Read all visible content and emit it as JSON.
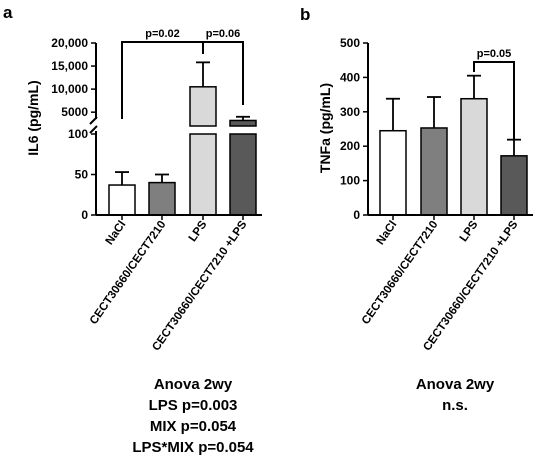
{
  "chart_data": [
    {
      "panel": "a",
      "type": "bar",
      "ylabel": "IL6 (pg/mL)",
      "y_axis": {
        "broken": true,
        "lower_range": [
          0,
          100
        ],
        "lower_ticks": [
          0,
          50,
          100
        ],
        "upper_range": [
          2000,
          20000
        ],
        "upper_ticks": [
          5000,
          10000,
          15000,
          20000
        ],
        "tick_labels": [
          "0",
          "50",
          "100",
          "5000",
          "10,000",
          "15,000",
          "20,000"
        ]
      },
      "categories": [
        "NaCl",
        "CECT30660/CECT7210",
        "LPS",
        "CECT30660/CECT7210 +LPS"
      ],
      "values": [
        37,
        40,
        10500,
        3200
      ],
      "error": [
        16,
        10,
        5300,
        800
      ],
      "colors": [
        "#ffffff",
        "#7f7f7f",
        "#d9d9d9",
        "#595959"
      ],
      "comparisons": [
        {
          "from": 0,
          "to": 2,
          "label": "p=0.02"
        },
        {
          "from": 2,
          "to": 3,
          "label": "p=0.06"
        }
      ],
      "stats": [
        "Anova 2wy",
        "LPS p=0.003",
        "MIX p=0.054",
        "LPS*MIX p=0.054"
      ]
    },
    {
      "panel": "b",
      "type": "bar",
      "ylabel": "TNFa (pg/mL)",
      "ylim": [
        0,
        500
      ],
      "yticks": [
        0,
        100,
        200,
        300,
        400,
        500
      ],
      "categories": [
        "NaCl",
        "CECT30660/CECT7210",
        "LPS",
        "CECT30660/CECT7210 +LPS"
      ],
      "values": [
        245,
        253,
        338,
        172
      ],
      "error": [
        93,
        90,
        67,
        47
      ],
      "colors": [
        "#ffffff",
        "#7f7f7f",
        "#d9d9d9",
        "#595959"
      ],
      "comparisons": [
        {
          "from": 2,
          "to": 3,
          "label": "p=0.05"
        }
      ],
      "stats": [
        "Anova 2wy",
        "n.s."
      ]
    }
  ]
}
